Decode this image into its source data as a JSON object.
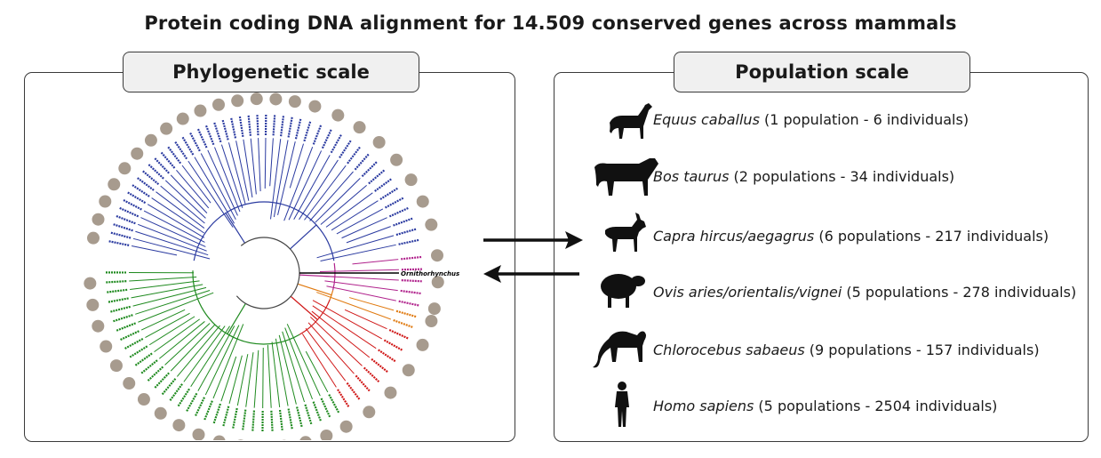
{
  "title": "Protein coding DNA alignment for 14.509 conserved genes across mammals",
  "left_panel": {
    "title": "Phylogenetic scale"
  },
  "right_panel": {
    "title": "Population scale",
    "species": [
      {
        "name": "Equus caballus",
        "detail": " (1 population - 6 individuals)",
        "icon": "horse-icon"
      },
      {
        "name": "Bos taurus",
        "detail": " (2 populations - 34 individuals)",
        "icon": "cow-icon"
      },
      {
        "name": "Capra hircus/aegagrus",
        "detail": " (6 populations - 217 individuals)",
        "icon": "goat-icon"
      },
      {
        "name": "Ovis aries/orientalis/vignei",
        "detail": " (5 populations - 278 individuals)",
        "icon": "sheep-icon"
      },
      {
        "name": "Chlorocebus sabaeus",
        "detail": " (9 populations - 157 individuals)",
        "icon": "monkey-icon"
      },
      {
        "name": "Homo sapiens",
        "detail": " (5 populations - 2504 individuals)",
        "icon": "human-icon"
      }
    ]
  },
  "tree": {
    "outgroup_label": "Ornithorhynchus",
    "colors": {
      "primates_rodents": "#2a3aa0",
      "laurasiatheria": "#1f8a1f",
      "marsupials": "#b0228c",
      "afrotheria_orange": "#e07a10",
      "xenarthra_red": "#d01818",
      "outgroup": "#000000"
    }
  }
}
